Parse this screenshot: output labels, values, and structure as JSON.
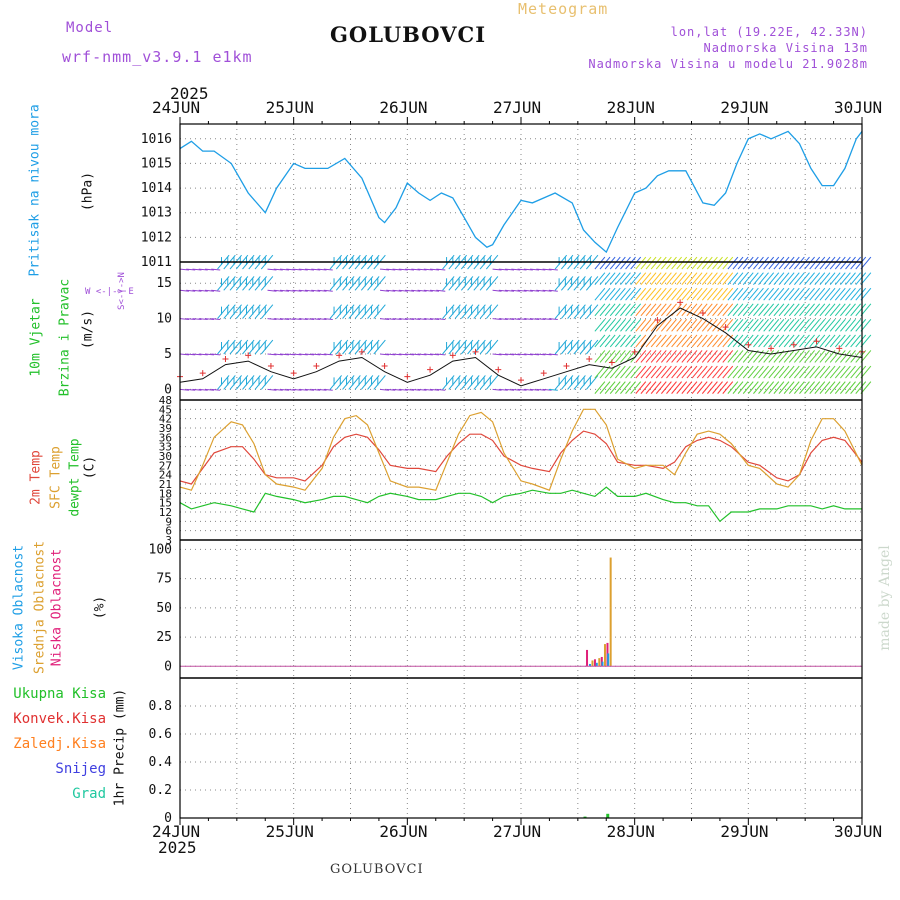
{
  "header": {
    "model_label": "Model",
    "model_value": "wrf-nmm_v3.9.1 e1km",
    "station": "GOLUBOVCI",
    "meteogram_label": "Meteogram",
    "lonlat": "lon,lat (19.22E, 42.33N)",
    "elevation": "Nadmorska Visina 13m",
    "model_elevation": "Nadmorska Visina u modelu 21.9028m",
    "credit": "made by Angel",
    "footer_station": "GOLUBOVCI"
  },
  "axis": {
    "year": "2025",
    "days": [
      "24JUN",
      "25JUN",
      "26JUN",
      "27JUN",
      "28JUN",
      "29JUN",
      "30JUN"
    ]
  },
  "panels": {
    "pressure": {
      "title": "Pritisak na nivou mora",
      "unit": "(hPa)",
      "ticks": [
        "1016",
        "1015",
        "1014",
        "1013",
        "1012",
        "1011"
      ]
    },
    "wind": {
      "title1": "10m Vjetar",
      "title2": "Brzina i Pravac",
      "unit": "(m/s)",
      "ticks": [
        "15",
        "10",
        "5",
        "0"
      ],
      "compass": "W <-|-> E",
      "compass_ns": "S<-|->N"
    },
    "temp": {
      "title1": "2m Temp",
      "title2": "SFC Temp",
      "title3": "dewpt Temp",
      "unit": "(C)",
      "ticks": [
        "48",
        "45",
        "42",
        "39",
        "36",
        "33",
        "30",
        "27",
        "24",
        "21",
        "18",
        "15",
        "12",
        "9",
        "6",
        "3"
      ]
    },
    "cloud": {
      "title1": "Visoka Oblacnost",
      "title2": "Srednja Oblacnost",
      "title3": "Niska Oblacnost",
      "unit": "(%)",
      "ticks": [
        "100",
        "75",
        "50",
        "25",
        "0"
      ]
    },
    "precip": {
      "legend": [
        "Ukupna Kisa",
        "Konvek.Kisa",
        "Zaledj.Kisa",
        "Snijeg",
        "Grad"
      ],
      "unit": "1hr Precip (mm)",
      "ticks": [
        "0.8",
        "0.6",
        "0.4",
        "0.2",
        "0"
      ]
    }
  },
  "colors": {
    "pressure": "#1e9ee6",
    "temp2m": "#e0483c",
    "sfc": "#dca030",
    "dewpt": "#22c02a",
    "purple": "#a050d8",
    "cloud_high": "#1e9ee6",
    "cloud_mid": "#dca030",
    "cloud_low": "#e0207a"
  },
  "chart_data": [
    {
      "type": "line",
      "name": "pressure",
      "x_range": [
        0,
        6
      ],
      "ylim": [
        1011,
        1016.5
      ],
      "x": [
        0,
        0.1,
        0.2,
        0.3,
        0.45,
        0.6,
        0.75,
        0.85,
        1.0,
        1.1,
        1.3,
        1.45,
        1.6,
        1.75,
        1.8,
        1.9,
        2.0,
        2.1,
        2.2,
        2.3,
        2.4,
        2.5,
        2.6,
        2.7,
        2.75,
        2.85,
        3.0,
        3.1,
        3.3,
        3.45,
        3.55,
        3.65,
        3.75,
        3.85,
        4.0,
        4.1,
        4.2,
        4.3,
        4.45,
        4.6,
        4.7,
        4.8,
        4.9,
        5.0,
        5.1,
        5.2,
        5.35,
        5.45,
        5.55,
        5.65,
        5.75,
        5.85,
        5.95,
        6.0
      ],
      "y": [
        1015.6,
        1015.9,
        1015.5,
        1015.5,
        1015.0,
        1013.8,
        1013.0,
        1014.0,
        1015.0,
        1014.8,
        1014.8,
        1015.2,
        1014.4,
        1012.8,
        1012.6,
        1013.2,
        1014.2,
        1013.8,
        1013.5,
        1013.8,
        1013.6,
        1012.8,
        1012.0,
        1011.6,
        1011.7,
        1012.5,
        1013.5,
        1013.4,
        1013.8,
        1013.4,
        1012.3,
        1011.8,
        1011.4,
        1012.4,
        1013.8,
        1014.0,
        1014.5,
        1014.7,
        1014.7,
        1013.4,
        1013.3,
        1013.8,
        1015.0,
        1016.0,
        1016.2,
        1016.0,
        1016.3,
        1015.8,
        1014.8,
        1014.1,
        1014.1,
        1014.8,
        1016.0,
        1016.3
      ]
    },
    {
      "type": "line",
      "name": "temperature",
      "x_range": [
        0,
        6
      ],
      "ylim": [
        3,
        48
      ],
      "x": [
        0,
        0.1,
        0.2,
        0.3,
        0.45,
        0.55,
        0.65,
        0.75,
        0.85,
        1.0,
        1.1,
        1.25,
        1.35,
        1.45,
        1.55,
        1.65,
        1.75,
        1.85,
        2.0,
        2.1,
        2.25,
        2.35,
        2.45,
        2.55,
        2.65,
        2.75,
        2.85,
        3.0,
        3.1,
        3.25,
        3.35,
        3.45,
        3.55,
        3.65,
        3.75,
        3.85,
        4.0,
        4.1,
        4.25,
        4.35,
        4.45,
        4.55,
        4.65,
        4.75,
        4.85,
        5.0,
        5.1,
        5.25,
        5.35,
        5.45,
        5.55,
        5.65,
        5.75,
        5.85,
        6.0
      ],
      "series": [
        {
          "name": "2m Temp",
          "values": [
            22,
            21,
            26,
            31,
            33,
            33,
            29,
            24,
            23,
            23,
            22,
            27,
            33,
            36,
            37,
            36,
            32,
            27,
            26,
            26,
            25,
            30,
            34,
            37,
            37,
            35,
            30,
            27,
            26,
            25,
            31,
            35,
            38,
            37,
            34,
            28,
            27,
            27,
            26,
            28,
            33,
            35,
            36,
            35,
            33,
            28,
            27,
            23,
            22,
            24,
            31,
            35,
            36,
            35,
            28
          ]
        },
        {
          "name": "SFC Temp",
          "values": [
            20,
            19,
            27,
            36,
            41,
            40,
            34,
            24,
            21,
            20,
            19,
            26,
            36,
            42,
            43,
            40,
            31,
            22,
            20,
            20,
            19,
            28,
            37,
            43,
            44,
            41,
            31,
            22,
            21,
            19,
            29,
            38,
            45,
            45,
            40,
            29,
            26,
            27,
            27,
            24,
            31,
            37,
            38,
            37,
            34,
            27,
            26,
            21,
            20,
            24,
            35,
            42,
            42,
            38,
            27
          ]
        },
        {
          "name": "dewpt Temp",
          "values": [
            15,
            13,
            14,
            15,
            14,
            13,
            12,
            18,
            17,
            16,
            15,
            16,
            17,
            17,
            16,
            15,
            17,
            18,
            17,
            16,
            16,
            17,
            18,
            18,
            17,
            15,
            17,
            18,
            19,
            18,
            18,
            19,
            18,
            17,
            20,
            17,
            17,
            18,
            16,
            15,
            15,
            14,
            14,
            9,
            12,
            12,
            13,
            13,
            14,
            14,
            14,
            13,
            14,
            13,
            13
          ]
        }
      ]
    },
    {
      "type": "line",
      "name": "wind_speed",
      "x_range": [
        0,
        6
      ],
      "ylim": [
        -1.5,
        18
      ],
      "x": [
        0,
        0.2,
        0.4,
        0.6,
        0.8,
        1.0,
        1.2,
        1.4,
        1.6,
        1.8,
        2.0,
        2.2,
        2.4,
        2.6,
        2.8,
        3.0,
        3.2,
        3.4,
        3.6,
        3.8,
        4.0,
        4.2,
        4.4,
        4.6,
        4.8,
        5.0,
        5.2,
        5.4,
        5.6,
        5.8,
        6.0
      ],
      "y": [
        1.0,
        1.5,
        3.5,
        4.0,
        2.5,
        1.5,
        2.5,
        4.0,
        4.5,
        2.5,
        1.0,
        2.0,
        4.0,
        4.5,
        2.0,
        0.5,
        1.5,
        2.5,
        3.5,
        3.0,
        4.5,
        9.0,
        11.5,
        10.0,
        8.0,
        5.5,
        5.0,
        5.5,
        6.0,
        5.0,
        4.5
      ]
    },
    {
      "type": "bar",
      "name": "cloud_cover",
      "ylim": [
        0,
        100
      ],
      "x": [
        3.55,
        3.62,
        3.68,
        3.73,
        3.78
      ],
      "series": [
        {
          "name": "Visoka Oblacnost",
          "values": [
            0,
            2,
            3,
            4,
            11
          ]
        },
        {
          "name": "Srednja Oblacnost",
          "values": [
            0,
            5,
            7,
            19,
            93
          ]
        },
        {
          "name": "Niska Oblacnost",
          "values": [
            14,
            6,
            8,
            20,
            0
          ]
        }
      ]
    },
    {
      "type": "bar",
      "name": "precipitation",
      "ylim": [
        0,
        1
      ],
      "x": [
        3.55,
        3.75
      ],
      "series": [
        {
          "name": "Ukupna Kisa",
          "values": [
            0.01,
            0.03
          ]
        },
        {
          "name": "Konvek.Kisa",
          "values": [
            0.0,
            0.0
          ]
        }
      ]
    }
  ]
}
